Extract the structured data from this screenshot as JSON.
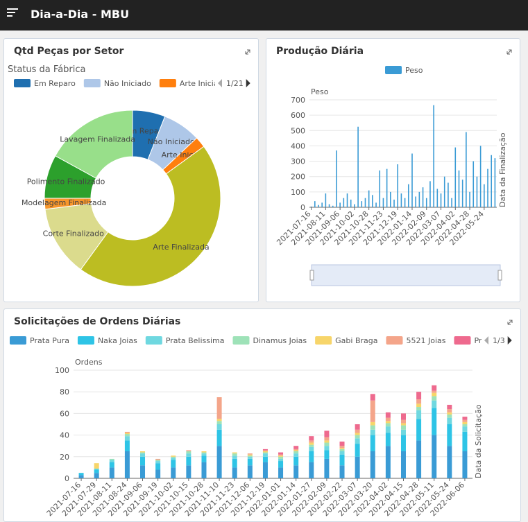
{
  "header": {
    "title": "Dia-a-Dia - MBU"
  },
  "chart_data": [
    {
      "type": "pie",
      "title": "Qtd Peças por Setor",
      "subtitle": "Status da Fábrica",
      "legend_page": "1/21",
      "labels": [
        "Em Reparo",
        "Não Iniciado",
        "Arte Iniciado",
        "Arte Finalizada",
        "Corte Finalizado",
        "Modelagem Finalizada",
        "Polimento Finalizado",
        "Lavagem Finalizada"
      ],
      "values": [
        6,
        7,
        2,
        45,
        13,
        2,
        8,
        17
      ],
      "colors": [
        "#1f6fb0",
        "#aec7e8",
        "#ff7f0e",
        "#bcbd22",
        "#dbdb8d",
        "#f7962a",
        "#2ca02c",
        "#98df8a"
      ]
    },
    {
      "type": "bar",
      "title": "Produção Diária",
      "legend": "Peso",
      "ylabel": "Peso",
      "xlabel": "Data da Finalização",
      "color": "#3a9bd5",
      "categories": [
        "2021-07-16",
        null,
        null,
        null,
        "2021-08-11",
        null,
        null,
        null,
        "2021-09-06",
        null,
        null,
        null,
        "2021-10-02",
        null,
        null,
        null,
        "2021-10-28",
        null,
        null,
        null,
        "2021-11-23",
        null,
        null,
        null,
        "2021-12-19",
        null,
        null,
        null,
        "2022-01-14",
        null,
        null,
        null,
        "2022-02-09",
        null,
        null,
        null,
        "2022-03-07",
        null,
        null,
        null,
        "2022-04-02",
        null,
        null,
        null,
        "2022-04-28",
        null,
        null,
        null,
        "2022-05-24",
        null,
        null,
        null
      ],
      "values": [
        5,
        40,
        15,
        30,
        90,
        20,
        10,
        370,
        30,
        60,
        90,
        50,
        20,
        525,
        40,
        60,
        110,
        80,
        30,
        240,
        60,
        250,
        100,
        50,
        280,
        90,
        60,
        150,
        350,
        70,
        100,
        130,
        60,
        170,
        665,
        120,
        90,
        200,
        160,
        60,
        390,
        240,
        180,
        490,
        100,
        300,
        200,
        400,
        150,
        250,
        340,
        320
      ],
      "ylim": [
        0,
        700
      ],
      "yticks": [
        0,
        100,
        200,
        300,
        400,
        500,
        600,
        700
      ],
      "grid": true
    },
    {
      "type": "bar",
      "stacked": true,
      "title": "Solicitações de Ordens Diárias",
      "legend_page": "1/3",
      "ylabel": "Ordens",
      "xlabel": "Data da Solicitação",
      "categories": [
        "2021-07-16",
        "2021-07-29",
        "2021-08-11",
        "2021-08-24",
        "2021-09-06",
        "2021-09-19",
        "2021-10-02",
        "2021-10-15",
        "2021-10-28",
        "2021-11-10",
        "2021-11-23",
        "2021-12-06",
        "2021-12-19",
        "2022-01-01",
        "2022-01-14",
        "2022-01-27",
        "2022-02-09",
        "2022-02-22",
        "2022-03-07",
        "2022-03-20",
        "2022-04-02",
        "2022-04-15",
        "2022-04-28",
        "2022-05-11",
        "2022-05-24",
        "2022-06-06"
      ],
      "series": [
        {
          "name": "Prata Pura",
          "color": "#3a9bd5",
          "values": [
            3,
            5,
            10,
            25,
            12,
            8,
            10,
            12,
            15,
            30,
            10,
            12,
            15,
            10,
            12,
            15,
            18,
            12,
            20,
            25,
            30,
            25,
            35,
            40,
            30,
            25
          ]
        },
        {
          "name": "Naka Joias",
          "color": "#2ec4e6",
          "values": [
            2,
            3,
            5,
            10,
            8,
            6,
            7,
            8,
            6,
            15,
            8,
            6,
            5,
            6,
            8,
            10,
            8,
            10,
            12,
            15,
            12,
            15,
            20,
            25,
            20,
            18
          ]
        },
        {
          "name": "Prata Belissima",
          "color": "#6fd8e0",
          "values": [
            0,
            1,
            2,
            4,
            3,
            2,
            2,
            3,
            2,
            5,
            3,
            2,
            3,
            2,
            3,
            4,
            4,
            3,
            5,
            5,
            6,
            5,
            8,
            7,
            6,
            5
          ]
        },
        {
          "name": "Dinamus Joias",
          "color": "#9ee2b8",
          "values": [
            0,
            0,
            1,
            2,
            1,
            1,
            1,
            2,
            1,
            3,
            2,
            1,
            1,
            2,
            2,
            2,
            3,
            2,
            3,
            4,
            3,
            4,
            3,
            4,
            3,
            2
          ]
        },
        {
          "name": "Gabi Braga",
          "color": "#f7d56a",
          "values": [
            0,
            5,
            0,
            1,
            1,
            0,
            1,
            0,
            1,
            2,
            1,
            1,
            1,
            1,
            1,
            2,
            2,
            1,
            2,
            3,
            2,
            2,
            3,
            3,
            2,
            2
          ]
        },
        {
          "name": "5521 Joias",
          "color": "#f4a58a",
          "values": [
            0,
            0,
            0,
            1,
            0,
            1,
            0,
            1,
            0,
            20,
            0,
            1,
            1,
            1,
            1,
            2,
            3,
            2,
            3,
            20,
            3,
            3,
            4,
            2,
            3,
            2
          ]
        },
        {
          "name": "Prata Pe",
          "color": "#ee6a8e",
          "values": [
            0,
            0,
            0,
            0,
            0,
            0,
            0,
            0,
            0,
            0,
            0,
            0,
            1,
            2,
            3,
            4,
            6,
            4,
            5,
            6,
            5,
            6,
            7,
            5,
            4,
            3
          ]
        }
      ],
      "ylim": [
        0,
        100
      ],
      "yticks": [
        0,
        20,
        40,
        60,
        80,
        100
      ],
      "grid": true
    }
  ]
}
